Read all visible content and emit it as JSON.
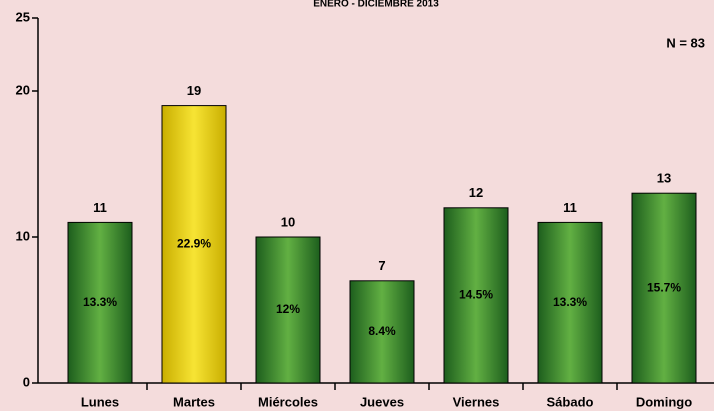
{
  "chart_data": {
    "type": "bar",
    "title": "ENERO - DICIEMBRE 2013",
    "annotation": "N = 83",
    "categories": [
      "Lunes",
      "Martes",
      "Miércoles",
      "Jueves",
      "Viernes",
      "Sábado",
      "Domingo"
    ],
    "values": [
      11,
      19,
      10,
      7,
      12,
      11,
      13
    ],
    "percent_labels": [
      "13.3%",
      "22.9%",
      "12%",
      "8.4%",
      "14.5%",
      "13.3%",
      "15.7%"
    ],
    "colors": [
      "green",
      "yellow",
      "green",
      "green",
      "green",
      "green",
      "green"
    ],
    "ylim": [
      0,
      25
    ],
    "yticks": [
      0,
      10,
      20,
      25
    ],
    "grid": false
  }
}
